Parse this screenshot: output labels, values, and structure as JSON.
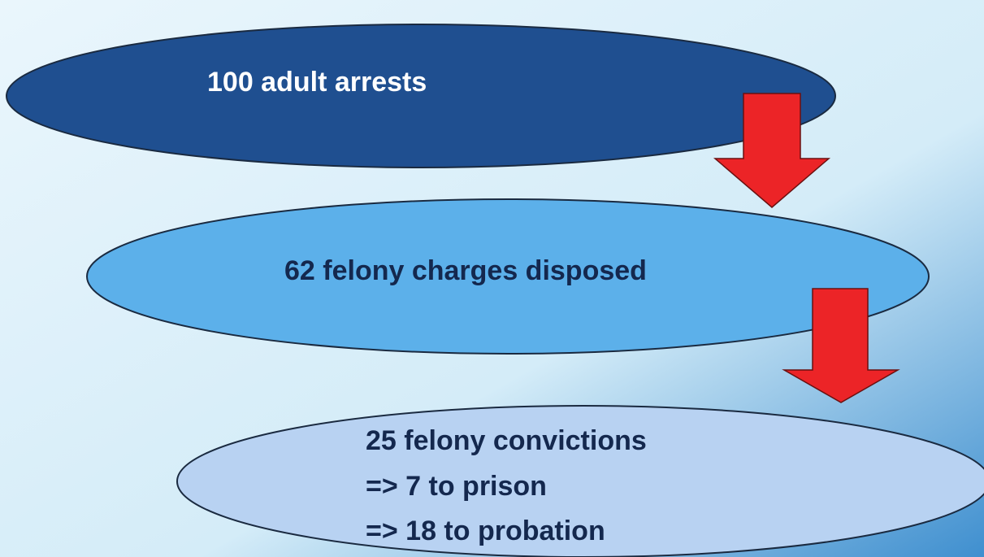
{
  "nodes": [
    {
      "label": "100 adult arrests"
    },
    {
      "label": "62 felony charges disposed"
    },
    {
      "label": "25 felony convictions",
      "details": [
        "=> 7 to prison",
        "=> 18 to probation"
      ]
    }
  ]
}
